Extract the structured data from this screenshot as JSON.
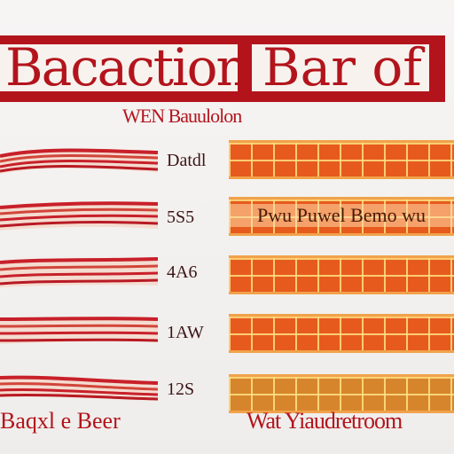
{
  "banner": {
    "left_title": "Bacaction.",
    "right_title": "Bar of"
  },
  "subtitle": "WEN Bauulolon",
  "rows": [
    {
      "label": "Datdl",
      "grid_text": ""
    },
    {
      "label": "5S5",
      "grid_text": "Pwu Puwel Bemo wu"
    },
    {
      "label": "4A6",
      "grid_text": ""
    },
    {
      "label": "1AW",
      "grid_text": ""
    },
    {
      "label": "12S",
      "grid_text": ""
    }
  ],
  "footer": {
    "left": "Baqxl e Beer",
    "right": "Wat Yiaudretroom"
  },
  "colors": {
    "brand_red": "#b3141c",
    "grid_orange": "#e75a1e",
    "grid_line": "#ffe182"
  }
}
